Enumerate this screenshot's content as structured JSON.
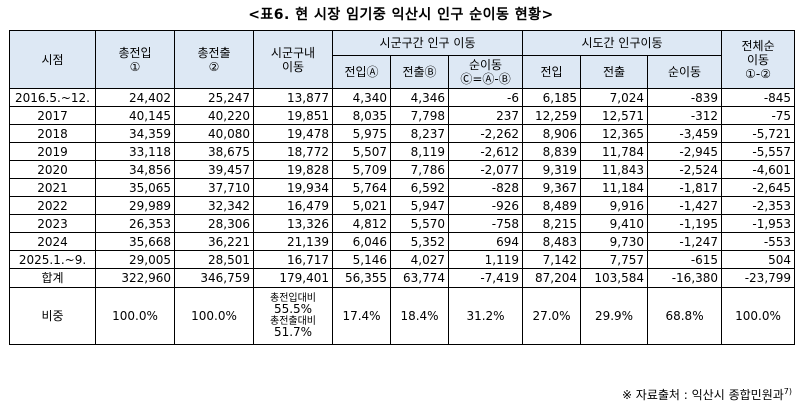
{
  "title": "<표6. 현 시장 임기중 익산시 인구 순이동 현황>",
  "headers": {
    "period": "시점",
    "total_in": [
      "총전입",
      "①"
    ],
    "total_out": [
      "총전출",
      "②"
    ],
    "intra": [
      "시군구내",
      "이동"
    ],
    "inter_city": "시군구간 인구 이동",
    "inter_city_in": "전입Ⓐ",
    "inter_city_out": "전출Ⓑ",
    "inter_city_net": [
      "순이동",
      "Ⓒ=Ⓐ-Ⓑ"
    ],
    "inter_prov": "시도간 인구이동",
    "inter_prov_in": "전입",
    "inter_prov_out": "전출",
    "inter_prov_net": "순이동",
    "overall_net": [
      "전체순",
      "이동",
      "①-②"
    ]
  },
  "rows": [
    [
      "2016.5.~12.",
      "24,402",
      "25,247",
      "13,877",
      "4,340",
      "4,346",
      "-6",
      "6,185",
      "7,024",
      "-839",
      "-845"
    ],
    [
      "2017",
      "40,145",
      "40,220",
      "19,851",
      "8,035",
      "7,798",
      "237",
      "12,259",
      "12,571",
      "-312",
      "-75"
    ],
    [
      "2018",
      "34,359",
      "40,080",
      "19,478",
      "5,975",
      "8,237",
      "-2,262",
      "8,906",
      "12,365",
      "-3,459",
      "-5,721"
    ],
    [
      "2019",
      "33,118",
      "38,675",
      "18,772",
      "5,507",
      "8,119",
      "-2,612",
      "8,839",
      "11,784",
      "-2,945",
      "-5,557"
    ],
    [
      "2020",
      "34,856",
      "39,457",
      "19,828",
      "5,709",
      "7,786",
      "-2,077",
      "9,319",
      "11,843",
      "-2,524",
      "-4,601"
    ],
    [
      "2021",
      "35,065",
      "37,710",
      "19,934",
      "5,764",
      "6,592",
      "-828",
      "9,367",
      "11,184",
      "-1,817",
      "-2,645"
    ],
    [
      "2022",
      "29,989",
      "32,342",
      "16,479",
      "5,021",
      "5,947",
      "-926",
      "8,489",
      "9,916",
      "-1,427",
      "-2,353"
    ],
    [
      "2023",
      "26,353",
      "28,306",
      "13,326",
      "4,812",
      "5,570",
      "-758",
      "8,215",
      "9,410",
      "-1,195",
      "-1,953"
    ],
    [
      "2024",
      "35,668",
      "36,221",
      "21,139",
      "6,046",
      "5,352",
      "694",
      "8,483",
      "9,730",
      "-1,247",
      "-553"
    ],
    [
      "2025.1.~9.",
      "29,005",
      "28,501",
      "16,717",
      "5,146",
      "4,027",
      "1,119",
      "7,142",
      "7,757",
      "-615",
      "504"
    ]
  ],
  "total": [
    "합계",
    "322,960",
    "346,759",
    "179,401",
    "56,355",
    "63,774",
    "-7,419",
    "87,204",
    "103,584",
    "-16,380",
    "-23,799"
  ],
  "ratio": {
    "label": "비중",
    "total_in": "100.0%",
    "total_out": "100.0%",
    "intra_lines": [
      "총전입대비",
      "55.5%",
      "총전출대비",
      "51.7%"
    ],
    "inter_city_in": "17.4%",
    "inter_city_out": "18.4%",
    "inter_city_net": "31.2%",
    "inter_prov_in": "27.0%",
    "inter_prov_out": "29.9%",
    "inter_prov_net": "68.8%",
    "overall_net": "100.0%"
  },
  "source_note": "※ 자료출처 : 익산시 종합민원과",
  "source_sup": "7)"
}
